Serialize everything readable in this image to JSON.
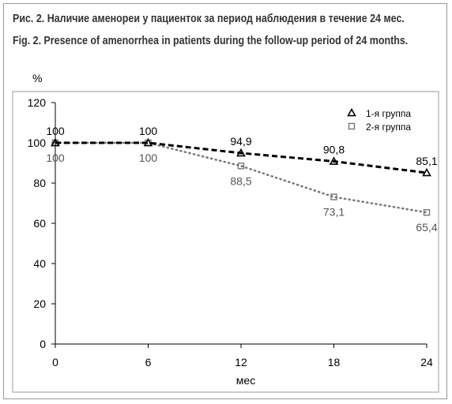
{
  "caption_ru": "Рис. 2. Наличие аменореи у пациенток за период наблюдения в течение 24 мес.",
  "caption_en": "Fig. 2. Presence of amenorrhea in patients during the follow-up period of 24 months.",
  "chart_data": {
    "type": "line",
    "ylabel": "%",
    "xlabel": "мес",
    "x": [
      0,
      6,
      12,
      18,
      24
    ],
    "xlim": [
      0,
      24
    ],
    "ylim": [
      0,
      120
    ],
    "yticks": [
      0,
      20,
      40,
      60,
      80,
      100,
      120
    ],
    "grid": false,
    "legend_position": "top-right",
    "series": [
      {
        "name": "1-я группа",
        "values": [
          100,
          100,
          94.9,
          90.8,
          85.1
        ],
        "labels": [
          "100",
          "100",
          "94,9",
          "90,8",
          "85,1"
        ],
        "color": "#000000",
        "style": "dashed",
        "marker": "triangle",
        "label_position": "above"
      },
      {
        "name": "2-я группа",
        "values": [
          100,
          100,
          88.5,
          73.1,
          65.4
        ],
        "labels": [
          "100",
          "100",
          "88,5",
          "73,1",
          "65,4"
        ],
        "color": "#777777",
        "style": "dotted",
        "marker": "square",
        "label_position": "below"
      }
    ]
  }
}
